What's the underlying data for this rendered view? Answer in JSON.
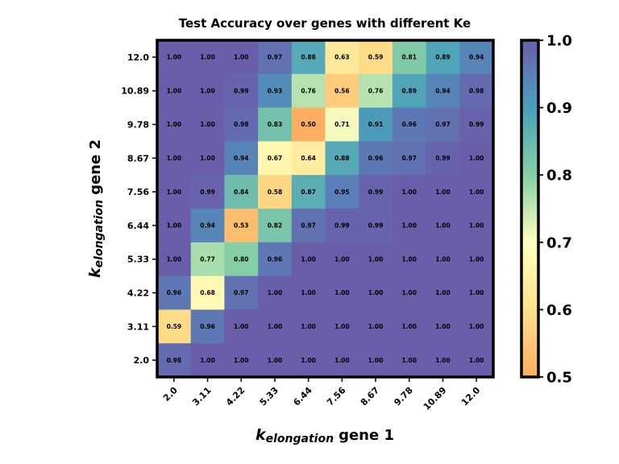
{
  "chart_data": {
    "type": "heatmap",
    "title": "Test Accuracy over genes with different Ke",
    "xlabel": {
      "symbol": "k",
      "subscript": "elongation",
      "suffix": "gene 1"
    },
    "ylabel": {
      "symbol": "k",
      "subscript": "elongation",
      "suffix": "gene 2"
    },
    "x_categories": [
      "2.0",
      "3.11",
      "4.22",
      "5.33",
      "6.44",
      "7.56",
      "8.67",
      "9.78",
      "10.89",
      "12.0"
    ],
    "y_categories": [
      "12.0",
      "10.89",
      "9.78",
      "8.67",
      "7.56",
      "6.44",
      "5.33",
      "4.22",
      "3.11",
      "2.0"
    ],
    "values": [
      [
        1.0,
        1.0,
        1.0,
        0.97,
        0.88,
        0.63,
        0.59,
        0.81,
        0.89,
        0.94
      ],
      [
        1.0,
        1.0,
        0.99,
        0.93,
        0.76,
        0.56,
        0.76,
        0.89,
        0.94,
        0.98
      ],
      [
        1.0,
        1.0,
        0.98,
        0.83,
        0.5,
        0.71,
        0.91,
        0.96,
        0.97,
        0.99
      ],
      [
        1.0,
        1.0,
        0.94,
        0.67,
        0.64,
        0.88,
        0.96,
        0.97,
        0.99,
        1.0
      ],
      [
        1.0,
        0.99,
        0.84,
        0.58,
        0.87,
        0.95,
        0.99,
        1.0,
        1.0,
        1.0
      ],
      [
        1.0,
        0.94,
        0.53,
        0.82,
        0.97,
        0.99,
        0.99,
        1.0,
        1.0,
        1.0
      ],
      [
        1.0,
        0.77,
        0.8,
        0.96,
        1.0,
        1.0,
        1.0,
        1.0,
        1.0,
        1.0
      ],
      [
        0.96,
        0.68,
        0.97,
        1.0,
        1.0,
        1.0,
        1.0,
        1.0,
        1.0,
        1.0
      ],
      [
        0.59,
        0.96,
        1.0,
        1.0,
        1.0,
        1.0,
        1.0,
        1.0,
        1.0,
        1.0
      ],
      [
        0.98,
        1.0,
        1.0,
        1.0,
        1.0,
        1.0,
        1.0,
        1.0,
        1.0,
        1.0
      ]
    ],
    "value_format_decimals": 2,
    "colormap": "Spectral",
    "vmin": 0.5,
    "vmax": 1.0,
    "colorbar": {
      "ticks": [
        0.5,
        0.6,
        0.7,
        0.8,
        0.9,
        1.0
      ],
      "tick_labels": [
        "0.5",
        "0.6",
        "0.7",
        "0.8",
        "0.9",
        "1.0"
      ]
    },
    "colorscale_stops": [
      {
        "v": 0.5,
        "color": "#fdae61"
      },
      {
        "v": 0.6,
        "color": "#fee08b"
      },
      {
        "v": 0.7,
        "color": "#ffffbf"
      },
      {
        "v": 0.8,
        "color": "#86cfa5"
      },
      {
        "v": 0.9,
        "color": "#4a9fba"
      },
      {
        "v": 0.95,
        "color": "#5b7fb8"
      },
      {
        "v": 1.0,
        "color": "#6a5daa"
      }
    ],
    "frame_color": "#000000"
  }
}
